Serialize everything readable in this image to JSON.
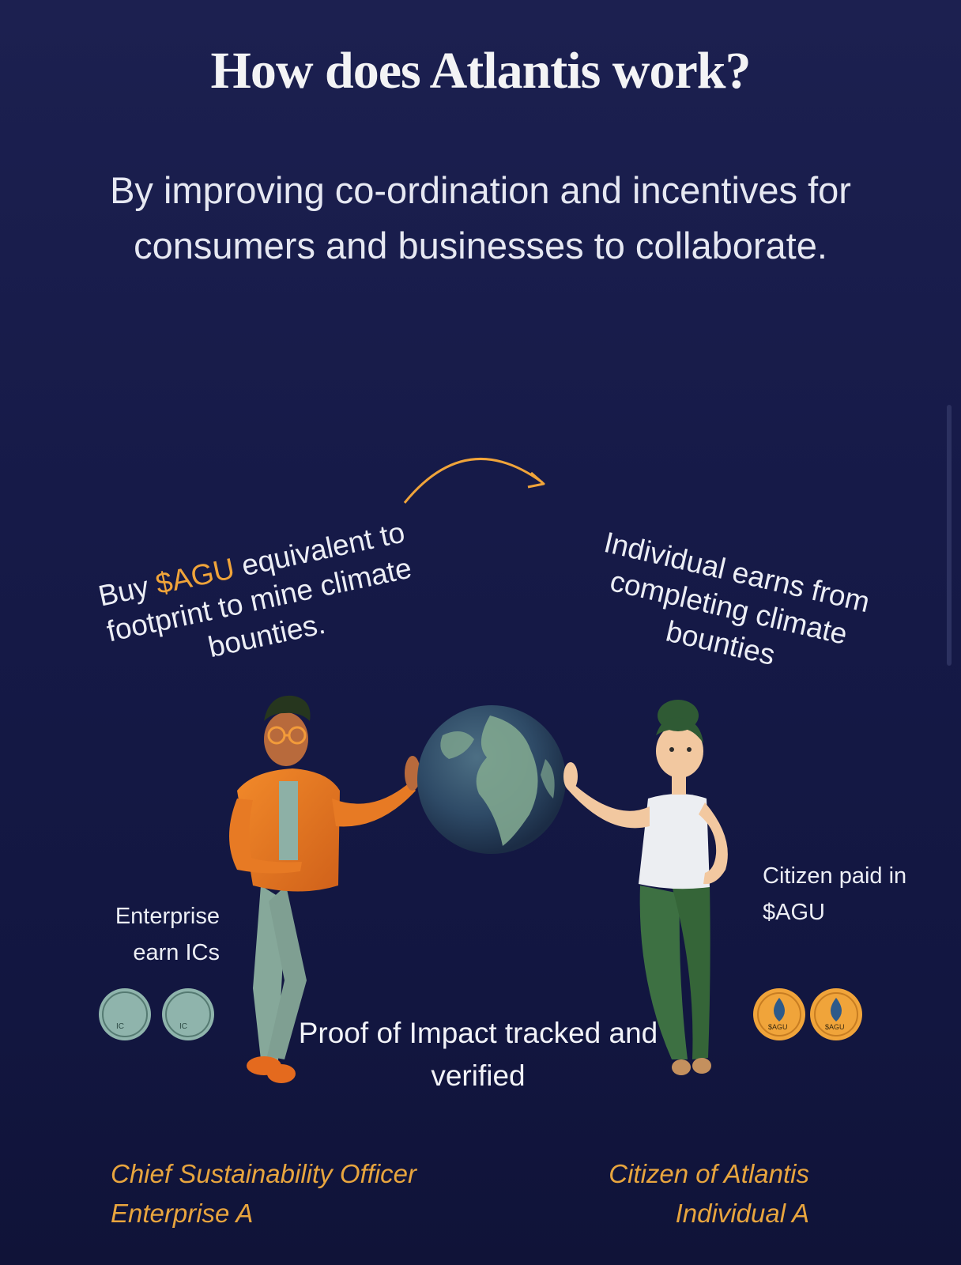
{
  "heading": "How does Atlantis work?",
  "subheading": "By improving co-ordination and incentives for consumers and businesses to collaborate.",
  "flow": {
    "left_caption_before": "Buy ",
    "left_caption_accent": "$AGU",
    "left_caption_after": " equivalent to footprint to mine climate bounties.",
    "right_caption": "Individual earns from completing climate bounties"
  },
  "enterprise_label": "Enterprise earn ICs",
  "citizen_label": "Citizen paid in $AGU",
  "proof_text": "Proof of Impact tracked and verified",
  "roles": {
    "left_line1": "Chief Sustainability Officer",
    "left_line2": "Enterprise A",
    "right_line1": "Citizen of Atlantis",
    "right_line2": "Individual A"
  },
  "coins": {
    "agu_text": "$AGU",
    "ic_text": "IC"
  },
  "colors": {
    "background": "#161a48",
    "accent": "#f0a43a",
    "ic_token": "#8fb4ac",
    "agu_token": "#f0a43a"
  },
  "icons": [
    "curved-arrow-icon",
    "globe-icon",
    "man-figure",
    "woman-figure",
    "ic-token-icon",
    "agu-token-icon"
  ]
}
